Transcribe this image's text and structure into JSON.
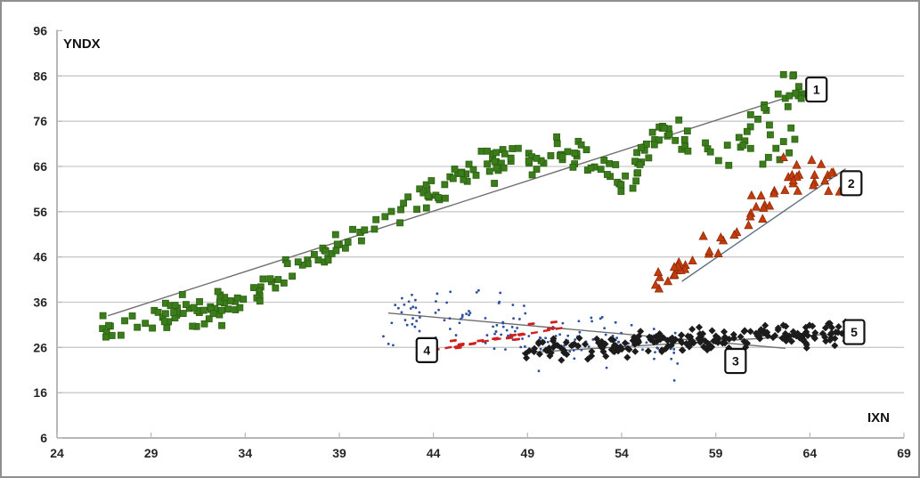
{
  "chart_data": {
    "type": "scatter",
    "title": "",
    "xlabel": "IXN",
    "ylabel": "YNDX",
    "xlim": [
      24,
      69
    ],
    "ylim": [
      6,
      96
    ],
    "x_ticks": [
      24,
      29,
      34,
      39,
      44,
      49,
      54,
      59,
      64,
      69
    ],
    "y_ticks": [
      6,
      16,
      26,
      36,
      46,
      56,
      66,
      76,
      86,
      96
    ],
    "grid": "horizontal-16-to-86",
    "legend": "none",
    "colors": {
      "grid": "#c9c9c9",
      "axis": "#9e9e9e",
      "trend": "#6f6f6f",
      "label_border": "#111111",
      "green": "#3a7d1a",
      "orange": "#c23c0c",
      "blue": "#2c4f9e",
      "red": "#d01f1f",
      "black": "#1c1c1c"
    },
    "series": [
      {
        "id": "1",
        "name": "green-squares",
        "marker": "square",
        "color": "#3a7d1a",
        "edge": "#2c5f12",
        "size": 7,
        "count": 250,
        "seed": 7,
        "x_range": [
          26.4,
          63.6
        ],
        "jitter_y": 1.7,
        "anchors": [
          [
            26.4,
            29.5
          ],
          [
            28,
            31
          ],
          [
            30,
            33
          ],
          [
            32,
            34.5
          ],
          [
            34,
            36.5
          ],
          [
            36,
            41
          ],
          [
            38,
            46
          ],
          [
            40,
            50
          ],
          [
            41.5,
            53.5
          ],
          [
            43,
            58
          ],
          [
            44.5,
            61
          ],
          [
            46,
            64.5
          ],
          [
            47.5,
            67
          ],
          [
            49,
            66.5
          ],
          [
            50.5,
            68.5
          ],
          [
            52,
            68
          ],
          [
            53.5,
            63.5
          ],
          [
            54.5,
            63.5
          ],
          [
            55.5,
            71
          ],
          [
            56.5,
            75
          ],
          [
            57.5,
            72
          ],
          [
            58.5,
            68
          ],
          [
            59.5,
            69.5
          ],
          [
            60.5,
            72
          ],
          [
            61.5,
            77
          ],
          [
            62.5,
            81
          ],
          [
            63.2,
            84
          ],
          [
            63.6,
            81.5
          ]
        ],
        "extra_points": [
          [
            26.6,
            28.3
          ],
          [
            27.4,
            28.7
          ],
          [
            61.5,
            66.5
          ],
          [
            61.8,
            68
          ],
          [
            61.9,
            73
          ],
          [
            62.2,
            70
          ],
          [
            62.4,
            67.5
          ],
          [
            62.6,
            71.5
          ],
          [
            62.9,
            69
          ],
          [
            63.0,
            74.5
          ],
          [
            63.2,
            72
          ],
          [
            62.6,
            86.3
          ],
          [
            63.1,
            86.0
          ]
        ],
        "trend": {
          "x1": 26.7,
          "y1": 33.0,
          "x2": 63.5,
          "y2": 82.2,
          "style": "solid",
          "color": "#6f6f6f"
        }
      },
      {
        "id": "2",
        "name": "orange-triangles",
        "marker": "triangle",
        "color": "#c23c0c",
        "edge": "#8f2a07",
        "size": 9,
        "count": 52,
        "seed": 13,
        "x_range": [
          55.6,
          66.0
        ],
        "jitter_y": 1.5,
        "anchors": [
          [
            55.6,
            41.5
          ],
          [
            56.5,
            43
          ],
          [
            57.5,
            45
          ],
          [
            58.5,
            47.5
          ],
          [
            59.5,
            50.5
          ],
          [
            60.5,
            54
          ],
          [
            61.5,
            57.5
          ],
          [
            62.5,
            60.5
          ],
          [
            63.5,
            63
          ],
          [
            64.5,
            63.5
          ],
          [
            66,
            62.5
          ]
        ],
        "extra_points": [
          [
            64.1,
            67.4
          ],
          [
            63.3,
            66.3
          ],
          [
            62.6,
            68.0
          ],
          [
            55.8,
            39.8
          ]
        ],
        "trend": {
          "x1": 57.2,
          "y1": 40.6,
          "x2": 65.9,
          "y2": 65.5,
          "style": "solid",
          "color": "#5f7285"
        }
      },
      {
        "id": "3",
        "name": "blue-dots",
        "marker": "dot",
        "color": "#2c4f9e",
        "edge": "#2c4f9e",
        "size": 2.7,
        "count": 145,
        "seed": 21,
        "x_range": [
          41.3,
          57.2
        ],
        "jitter_y": 2.8,
        "anchors": [
          [
            41.3,
            33
          ],
          [
            47,
            32
          ],
          [
            50,
            29
          ],
          [
            53,
            27.5
          ],
          [
            57.2,
            26.5
          ]
        ],
        "extra_points": [
          [
            56.8,
            18.7
          ],
          [
            49.6,
            20.8
          ],
          [
            53.2,
            21.5
          ],
          [
            44.9,
            38.3
          ],
          [
            46.4,
            38.6
          ]
        ],
        "trend": {
          "x1": 41.6,
          "y1": 33.6,
          "x2": 62.7,
          "y2": 25.8,
          "style": "solid",
          "color": "#6f6f6f"
        }
      },
      {
        "id": "4",
        "name": "red-dashes",
        "marker": "dash",
        "color": "#d01f1f",
        "edge": "#d01f1f",
        "size": 8,
        "count": 14,
        "seed": 5,
        "x_range": [
          43.4,
          51.0
        ],
        "jitter_y": 0.6,
        "anchors": [
          [
            43.4,
            25.2
          ],
          [
            51.0,
            30.4
          ]
        ],
        "extra_points": [
          [
            49.2,
            31.2
          ],
          [
            50.4,
            31.6
          ]
        ],
        "trend": {
          "x1": 43.3,
          "y1": 24.9,
          "x2": 51.1,
          "y2": 30.5,
          "style": "dashed",
          "color": "#d01f1f"
        }
      },
      {
        "id": "5",
        "name": "black-diamonds",
        "marker": "diamond",
        "color": "#1c1c1c",
        "edge": "#1c1c1c",
        "size": 8,
        "count": 215,
        "seed": 33,
        "x_range": [
          48.8,
          65.9
        ],
        "jitter_y": 1.1,
        "anchors": [
          [
            48.8,
            25.2
          ],
          [
            53,
            26.2
          ],
          [
            57,
            27.3
          ],
          [
            61,
            28.3
          ],
          [
            65.9,
            29.3
          ]
        ],
        "extra_points": [
          [
            50.8,
            23.2
          ],
          [
            54.3,
            23.8
          ],
          [
            52.2,
            23.4
          ],
          [
            65.5,
            29.3
          ],
          [
            65.7,
            29.1
          ]
        ],
        "trend": {
          "x1": 48.7,
          "y1": 24.8,
          "x2": 65.8,
          "y2": 29.1,
          "style": "solid",
          "color": "#6f6f6f"
        }
      }
    ],
    "labels": [
      {
        "text": "1",
        "x": 64.35,
        "y": 83.0
      },
      {
        "text": "2",
        "x": 66.2,
        "y": 62.3
      },
      {
        "text": "3",
        "x": 60.05,
        "y": 23.0
      },
      {
        "text": "4",
        "x": 43.65,
        "y": 25.4
      },
      {
        "text": "5",
        "x": 66.35,
        "y": 29.4
      }
    ]
  }
}
